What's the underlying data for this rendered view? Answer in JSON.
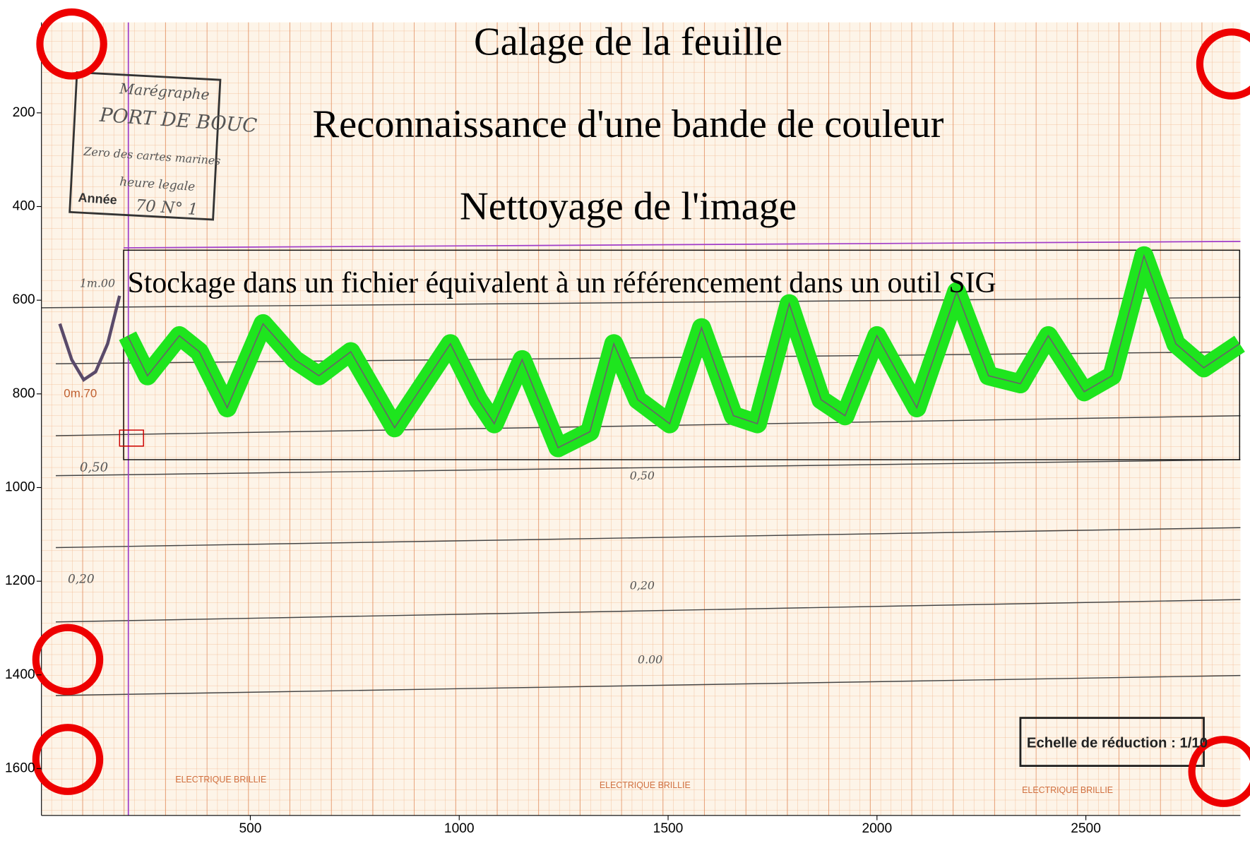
{
  "chart_data": {
    "type": "image",
    "xlim": [
      0,
      2870
    ],
    "ylim": [
      1700,
      0
    ],
    "xticks": [
      500,
      1000,
      1500,
      2000,
      2500
    ],
    "yticks": [
      200,
      400,
      600,
      800,
      1000,
      1200,
      1400,
      1600
    ]
  },
  "captions": [
    "Calage de la feuille",
    "Reconnaissance d'une bande de couleur",
    "Nettoyage de l'image",
    "Stockage dans un fichier équivalent à un référencement dans un outil SIG"
  ],
  "sheet": {
    "stamp": [
      "Marégraphe",
      "PORT DE BOUC",
      "Zero des cartes marines",
      "heure legale",
      "Année",
      "70 N° 1"
    ],
    "scale_marks": [
      "1m.00",
      "0m.70",
      "0,50",
      "0,50",
      "0,20",
      "0,20",
      "0.00"
    ],
    "scale_box": "Echelle de réduction : 1/10",
    "footer": [
      "ELECTRIQUE BRILLIE",
      "ELECTRIQUE BRILLIE",
      "ELECTRIQUE BRILLIE"
    ]
  }
}
